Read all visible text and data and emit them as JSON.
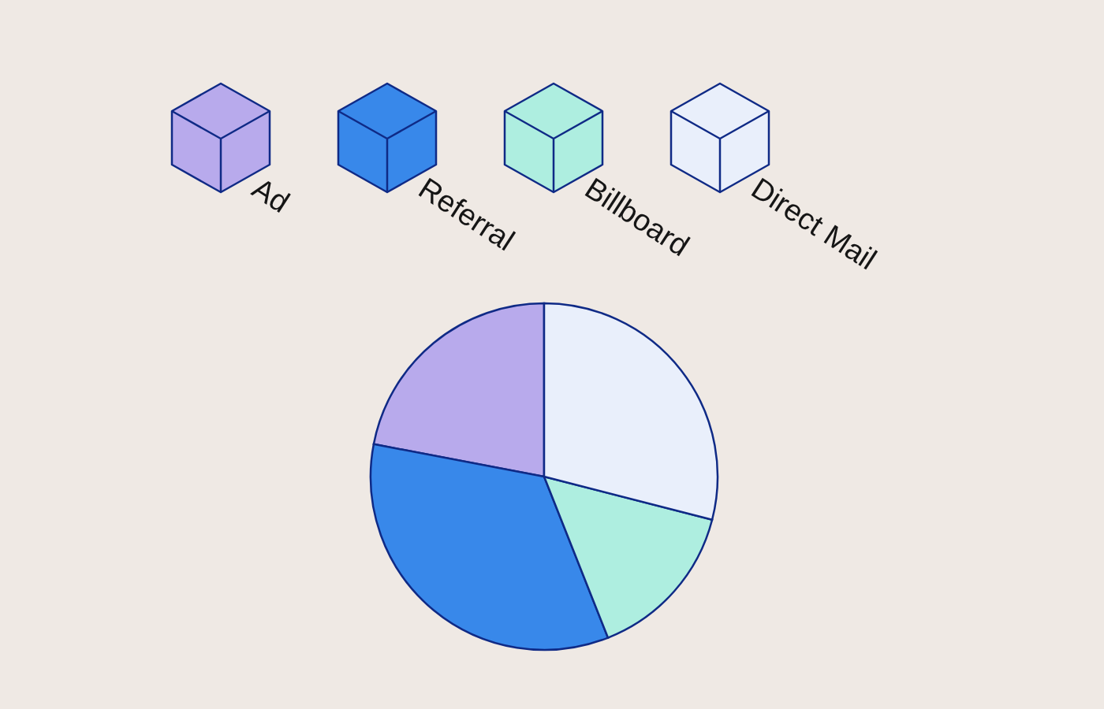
{
  "chart_data": {
    "type": "pie",
    "categories": [
      "Ad",
      "Referral",
      "Billboard",
      "Direct Mail"
    ],
    "values": [
      22,
      34,
      15,
      29
    ],
    "colors": [
      "#b8aaec",
      "#3888ea",
      "#aeeee0",
      "#e9effb"
    ],
    "legend": "top"
  }
}
